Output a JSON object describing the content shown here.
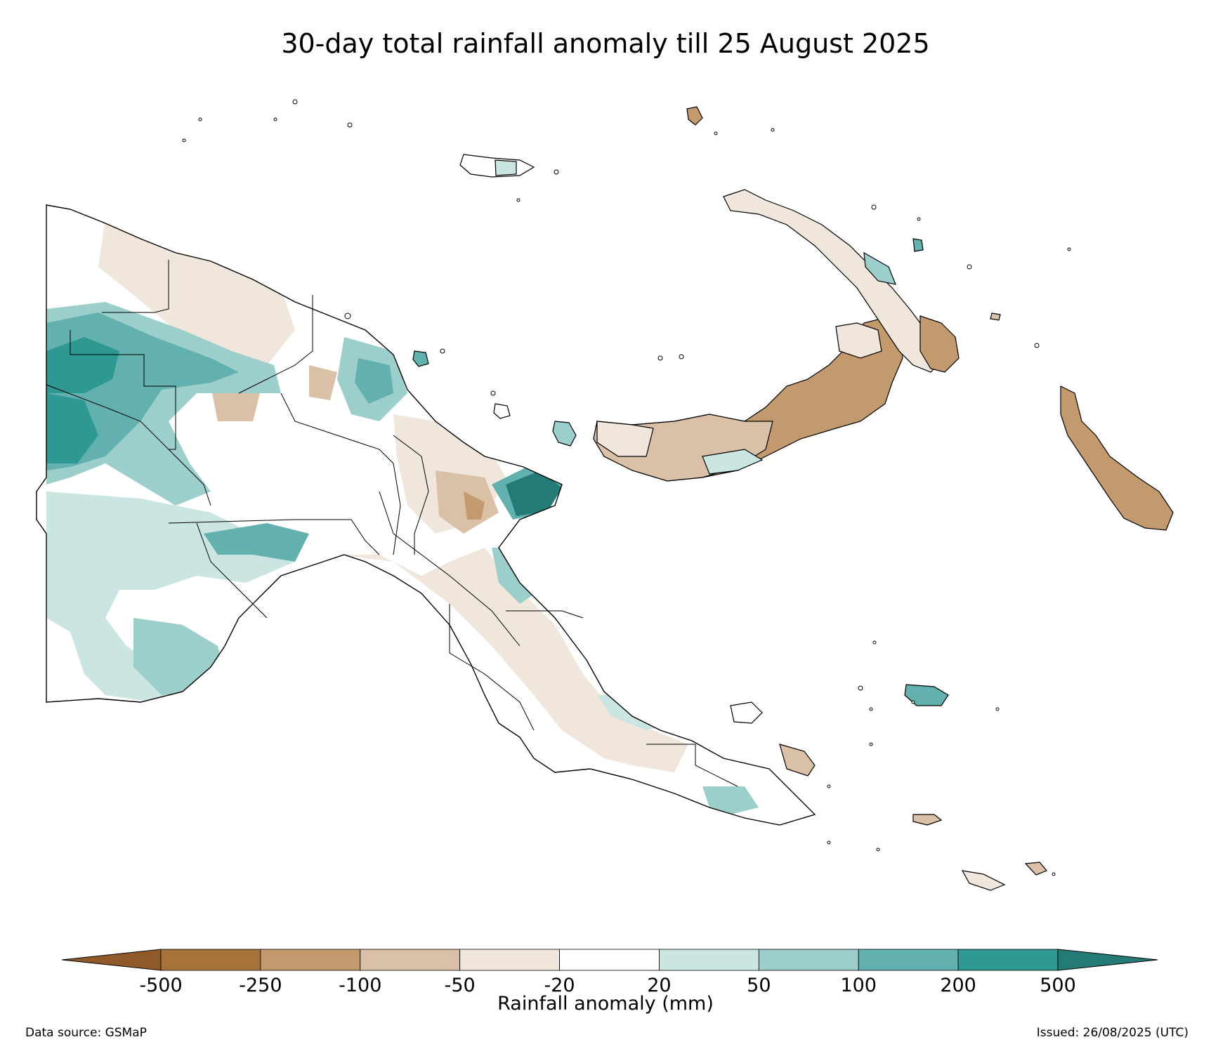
{
  "title": "30-day total rainfall anomaly till 25 August 2025",
  "colorbar": {
    "label": "Rainfall anomaly (mm)",
    "ticks": [
      "-500",
      "-250",
      "-100",
      "-50",
      "-20",
      "20",
      "50",
      "100",
      "200",
      "500"
    ],
    "bins": [
      {
        "from": null,
        "to": -500,
        "color": "#8f5a28"
      },
      {
        "from": -500,
        "to": -250,
        "color": "#a8733b"
      },
      {
        "from": -250,
        "to": -100,
        "color": "#c29a6e"
      },
      {
        "from": -100,
        "to": -50,
        "color": "#d9c0a6"
      },
      {
        "from": -50,
        "to": -20,
        "color": "#f0e6dc"
      },
      {
        "from": -20,
        "to": 20,
        "color": "#ffffff"
      },
      {
        "from": 20,
        "to": 50,
        "color": "#cbe5e3"
      },
      {
        "from": 50,
        "to": 100,
        "color": "#9ccfcc"
      },
      {
        "from": 100,
        "to": 200,
        "color": "#62b1ae"
      },
      {
        "from": 200,
        "to": 500,
        "color": "#2e9893"
      },
      {
        "from": 500,
        "to": null,
        "color": "#237a76"
      }
    ],
    "orientation": "horizontal",
    "extend": "both"
  },
  "footer": {
    "data_source": "Data source: GSMaP",
    "issued": "Issued: 26/08/2025 (UTC)"
  },
  "map": {
    "region": "Papua New Guinea",
    "icons": [
      "coastline",
      "province-boundaries"
    ]
  }
}
